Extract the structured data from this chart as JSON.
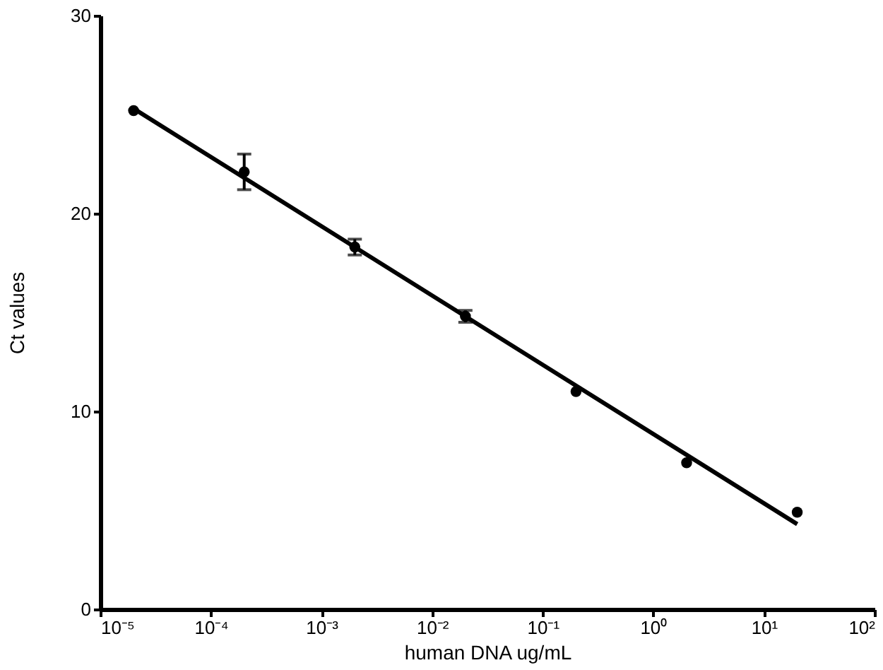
{
  "chart_data": {
    "type": "scatter",
    "xlabel": "human DNA ug/mL",
    "ylabel": "Ct values",
    "log": "x",
    "grid": false,
    "marker": "circle",
    "xlim": [
      1e-05,
      100
    ],
    "xticks": [
      {
        "value": 1e-05,
        "label": "10⁻⁵"
      },
      {
        "value": 0.0001,
        "label": "10⁻⁴"
      },
      {
        "value": 0.001,
        "label": "10⁻³"
      },
      {
        "value": 0.01,
        "label": "10⁻²"
      },
      {
        "value": 0.1,
        "label": "10⁻¹"
      },
      {
        "value": 1,
        "label": "10⁰"
      },
      {
        "value": 10,
        "label": "10¹"
      },
      {
        "value": 100,
        "label": "10²"
      }
    ],
    "ylim": [
      0,
      30
    ],
    "yticks": [
      0,
      10,
      20,
      30
    ],
    "series": [
      {
        "color": "#000000",
        "x": [
          2e-05,
          0.0002,
          0.002,
          0.02,
          0.2,
          2,
          20
        ],
        "values": [
          25.2,
          22.1,
          18.3,
          14.8,
          11.0,
          7.4,
          4.9
        ],
        "errors": [
          null,
          0.9,
          0.4,
          0.3,
          null,
          null,
          null
        ]
      },
      {
        "type": "line",
        "color": "#000000",
        "line_style": "solid",
        "marker": "none",
        "x": [
          2e-05,
          20
        ],
        "values": [
          25.3,
          4.3
        ]
      }
    ]
  }
}
